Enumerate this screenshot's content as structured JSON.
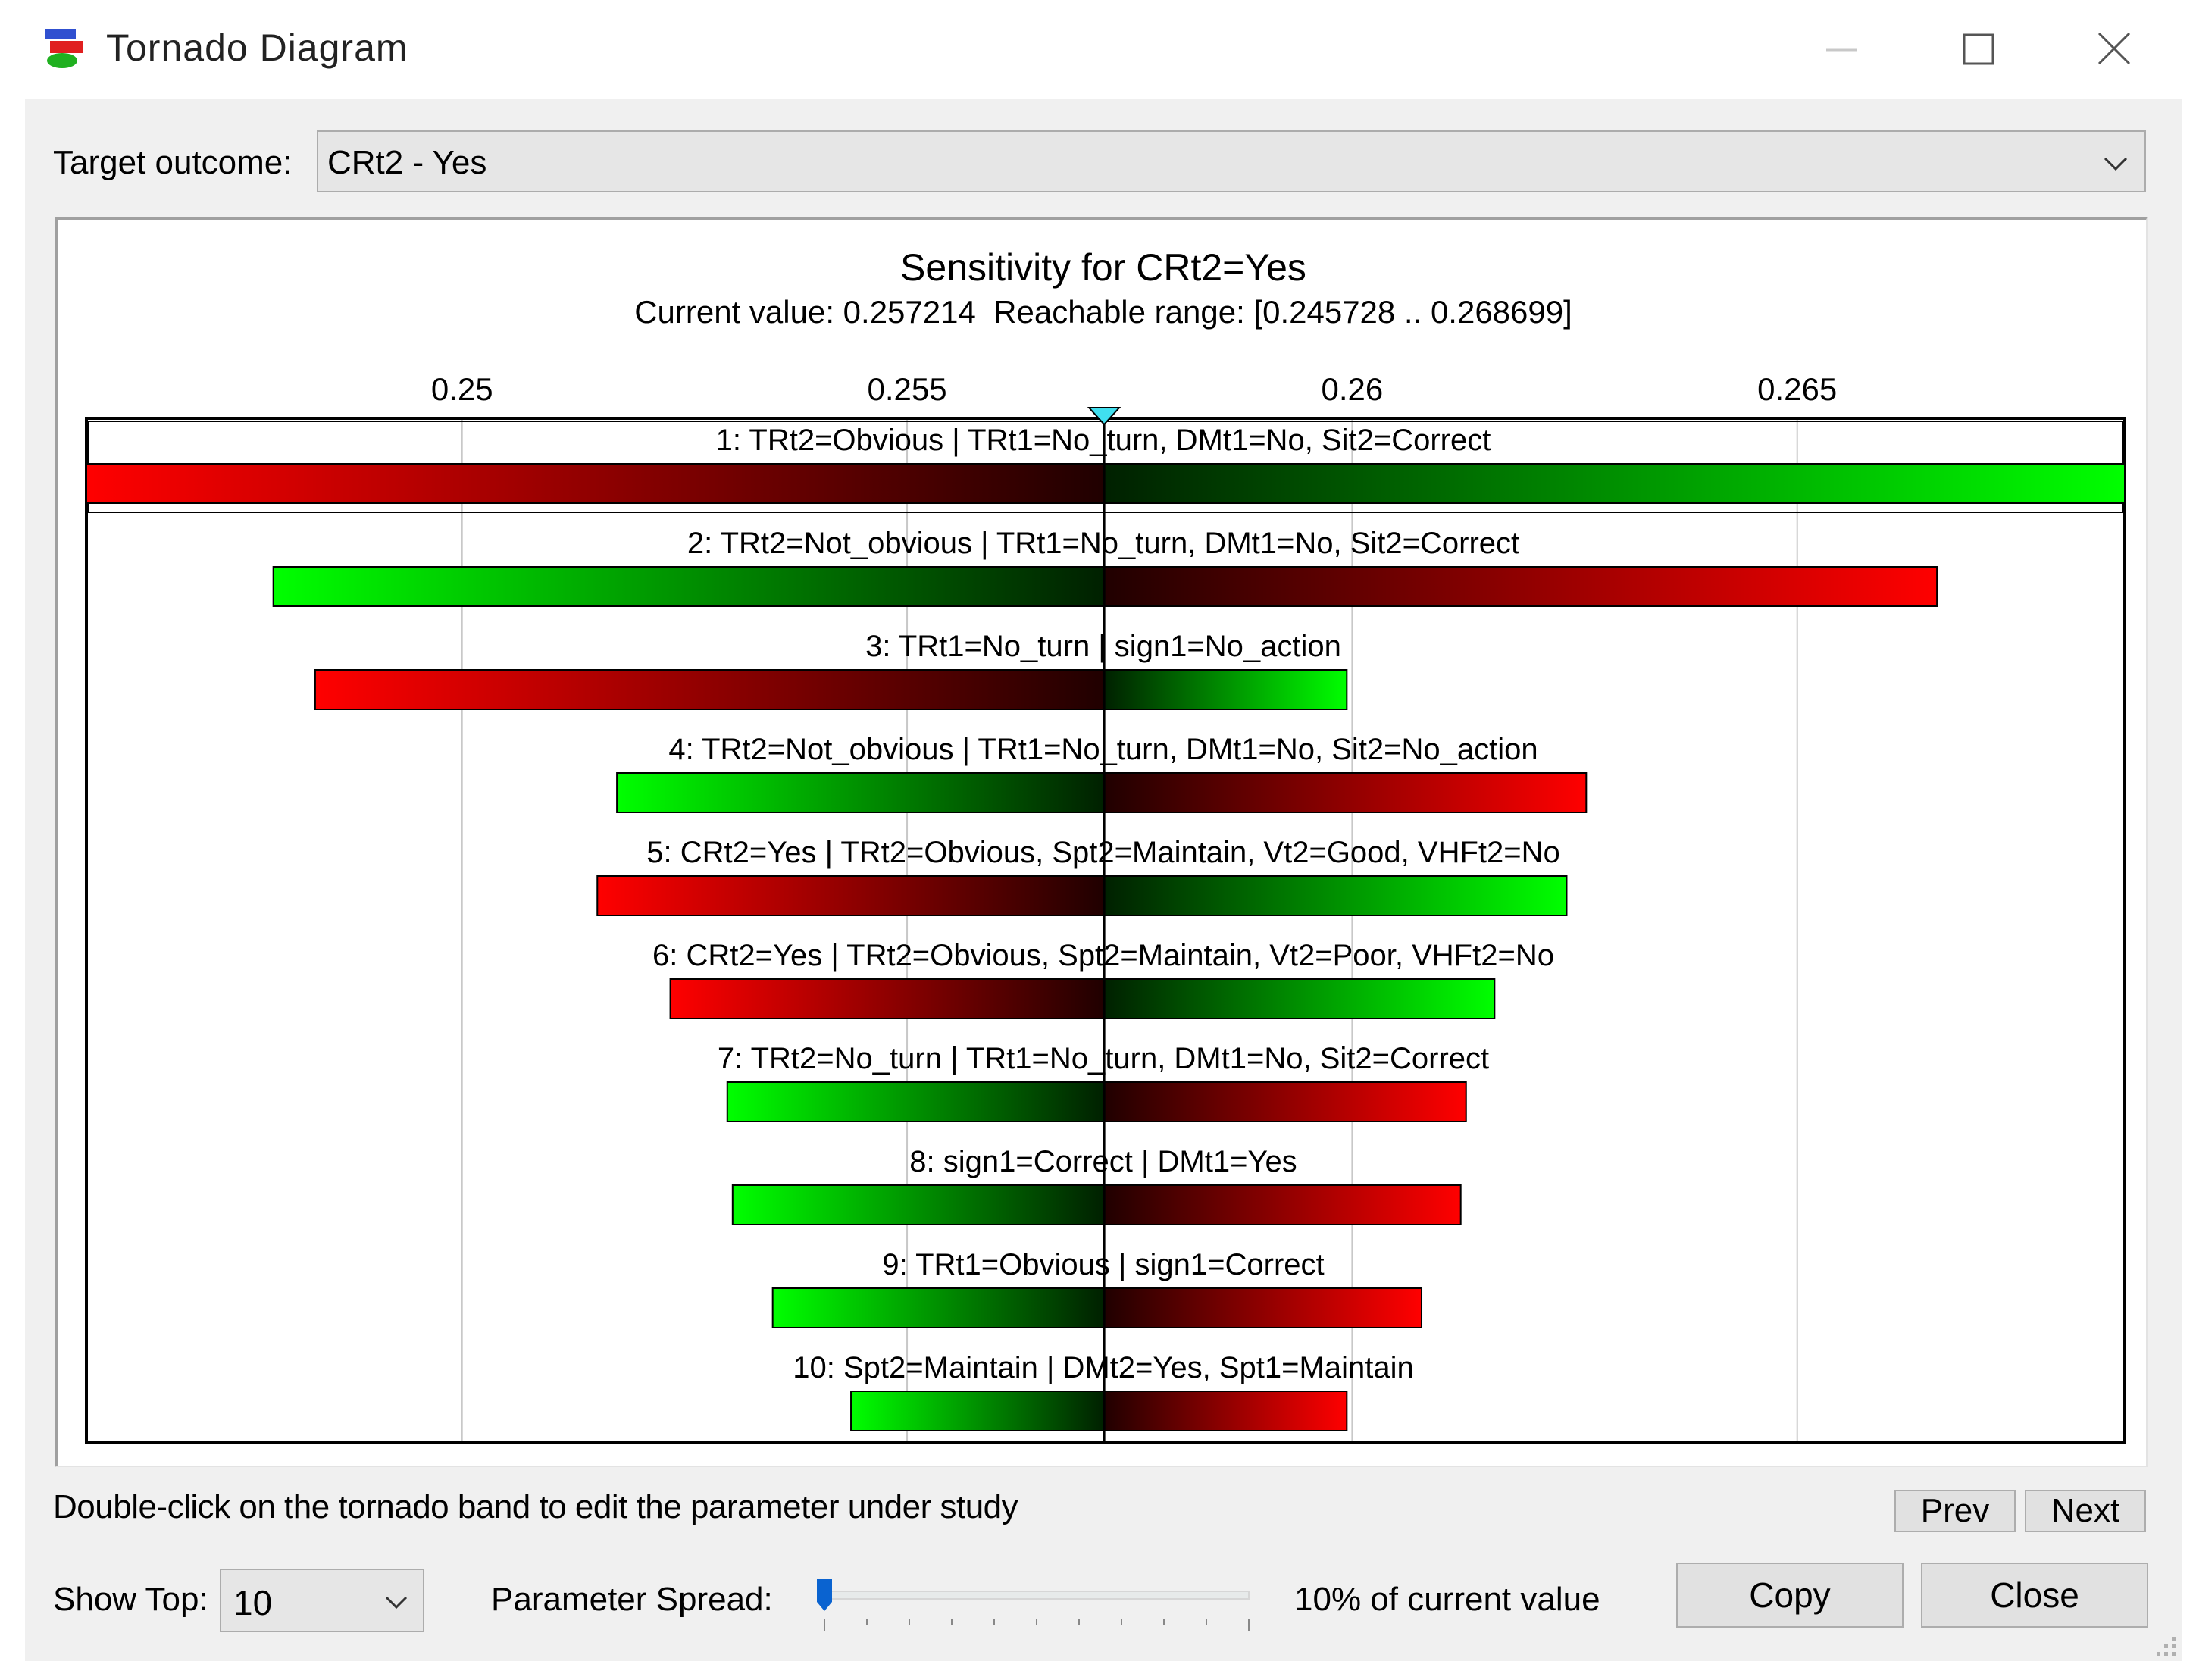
{
  "window": {
    "title": "Tornado Diagram",
    "icons": {
      "app": "tornado-app-icon",
      "minimize": "minimize-icon",
      "maximize": "maximize-icon",
      "close": "close-icon"
    }
  },
  "target": {
    "label": "Target outcome:",
    "value": "CRt2 - Yes"
  },
  "chart_data": {
    "type": "bar",
    "title": "Sensitivity for CRt2=Yes",
    "subtitle": "Current value: 0.257214  Reachable range: [0.245728 .. 0.268699]",
    "current_value": 0.257214,
    "xlim": [
      0.24578,
      0.26868
    ],
    "ticks": [
      {
        "value": 0.25,
        "label": "0.25"
      },
      {
        "value": 0.255,
        "label": "0.255"
      },
      {
        "value": 0.26,
        "label": "0.26"
      },
      {
        "value": 0.265,
        "label": "0.265"
      }
    ],
    "grid": true,
    "colors": {
      "low_end": "#ff0000",
      "high_end": "#00ff00",
      "center": "#000000"
    },
    "bars": [
      {
        "label": "1: TRt2=Obvious | TRt1=No_turn, DMt1=No, Sit2=Correct",
        "low": 0.24578,
        "high": 0.26868,
        "left_color": "red"
      },
      {
        "label": "2: TRt2=Not_obvious | TRt1=No_turn, DMt1=No, Sit2=Correct",
        "low": 0.24788,
        "high": 0.26657,
        "left_color": "green"
      },
      {
        "label": "3: TRt1=No_turn | sign1=No_action",
        "low": 0.24835,
        "high": 0.25994,
        "left_color": "red"
      },
      {
        "label": "4: TRt2=Not_obvious | TRt1=No_turn, DMt1=No, Sit2=No_action",
        "low": 0.25174,
        "high": 0.26263,
        "left_color": "green"
      },
      {
        "label": "5: CRt2=Yes | TRt2=Obvious, Spt2=Maintain, Vt2=Good, VHFt2=No",
        "low": 0.25152,
        "high": 0.26241,
        "left_color": "red"
      },
      {
        "label": "6: CRt2=Yes | TRt2=Obvious, Spt2=Maintain, Vt2=Poor, VHFt2=No",
        "low": 0.25234,
        "high": 0.2616,
        "left_color": "red"
      },
      {
        "label": "7: TRt2=No_turn | TRt1=No_turn, DMt1=No, Sit2=Correct",
        "low": 0.25298,
        "high": 0.26128,
        "left_color": "green"
      },
      {
        "label": "8: sign1=Correct | DMt1=Yes",
        "low": 0.25304,
        "high": 0.26122,
        "left_color": "green"
      },
      {
        "label": "9: TRt1=Obvious | sign1=Correct",
        "low": 0.25349,
        "high": 0.26078,
        "left_color": "green"
      },
      {
        "label": "10: Spt2=Maintain | DMt2=Yes, Spt1=Maintain",
        "low": 0.25437,
        "high": 0.25994,
        "left_color": "green"
      }
    ]
  },
  "hint": "Double-click on the tornado band to edit the parameter under study",
  "nav": {
    "prev": "Prev",
    "next": "Next"
  },
  "show_top": {
    "label": "Show Top:",
    "value": "10"
  },
  "spread": {
    "label": "Parameter Spread:",
    "value_text": "10% of current value",
    "level": 0.0
  },
  "actions": {
    "copy": "Copy",
    "close": "Close"
  }
}
